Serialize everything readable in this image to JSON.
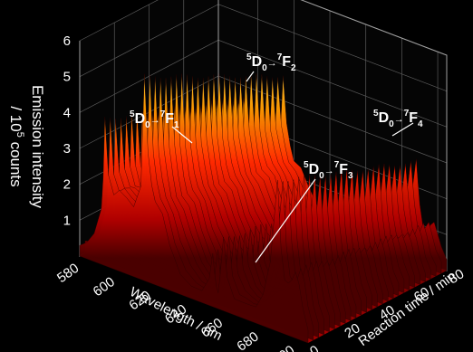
{
  "chart_data": {
    "type": "surface-3d",
    "y_axis_label_line1": "Emission intensity",
    "y_axis_label_line2": "/ 10",
    "y_axis_label_sup": "5",
    "y_axis_label_line3": " counts",
    "x_axis_label": "Wavelength / nm",
    "z_axis_label": "Reaction time / min",
    "y_ticks": [
      "1",
      "2",
      "3",
      "4",
      "5",
      "6"
    ],
    "x_ticks": [
      "580",
      "600",
      "620",
      "640",
      "660",
      "680",
      "700"
    ],
    "z_ticks": [
      "0",
      "20",
      "40",
      "60",
      "80"
    ],
    "ylim": [
      0,
      6
    ],
    "xlim": [
      578,
      705
    ],
    "zlim": [
      0,
      80
    ],
    "spectrum_at_t0": {
      "x": [
        578,
        582,
        586,
        590,
        591,
        592,
        594,
        597,
        600,
        604,
        608,
        612,
        614,
        616,
        618,
        620,
        624,
        628,
        634,
        640,
        646,
        650,
        652,
        653,
        654,
        655,
        656,
        658,
        660,
        664,
        668,
        672,
        676,
        680,
        684,
        688,
        690,
        692,
        694,
        696,
        698,
        700,
        702,
        705
      ],
      "y": [
        0.3,
        0.4,
        0.8,
        1.6,
        2.4,
        4.1,
        2.6,
        2.1,
        2.2,
        2.1,
        2.0,
        2.6,
        5.7,
        3.6,
        2.8,
        2.3,
        2.0,
        1.3,
        0.6,
        0.3,
        0.3,
        0.8,
        1.5,
        0.9,
        0.6,
        0.5,
        0.9,
        2.0,
        1.0,
        0.5,
        0.4,
        0.4,
        0.5,
        0.9,
        1.8,
        4.2,
        2.4,
        1.5,
        1.4,
        1.6,
        1.9,
        1.5,
        0.9,
        0.4
      ]
    },
    "annotations": [
      {
        "pre": "5",
        "main1": "D",
        "sub": "0",
        "arrow": "→",
        "sup2": "7",
        "main2": "F",
        "sub2": "1"
      },
      {
        "pre": "5",
        "main1": "D",
        "sub": "0",
        "arrow": "→",
        "sup2": "7",
        "main2": "F",
        "sub2": "2"
      },
      {
        "pre": "5",
        "main1": "D",
        "sub": "0",
        "arrow": "→",
        "sup2": "7",
        "main2": "F",
        "sub2": "3"
      },
      {
        "pre": "5",
        "main1": "D",
        "sub": "0",
        "arrow": "→",
        "sup2": "7",
        "main2": "F",
        "sub2": "4"
      }
    ],
    "colors": {
      "low": "#3a0000",
      "mid": "#e01000",
      "high": "#ffff40",
      "background": "#000000"
    },
    "grid": true
  }
}
